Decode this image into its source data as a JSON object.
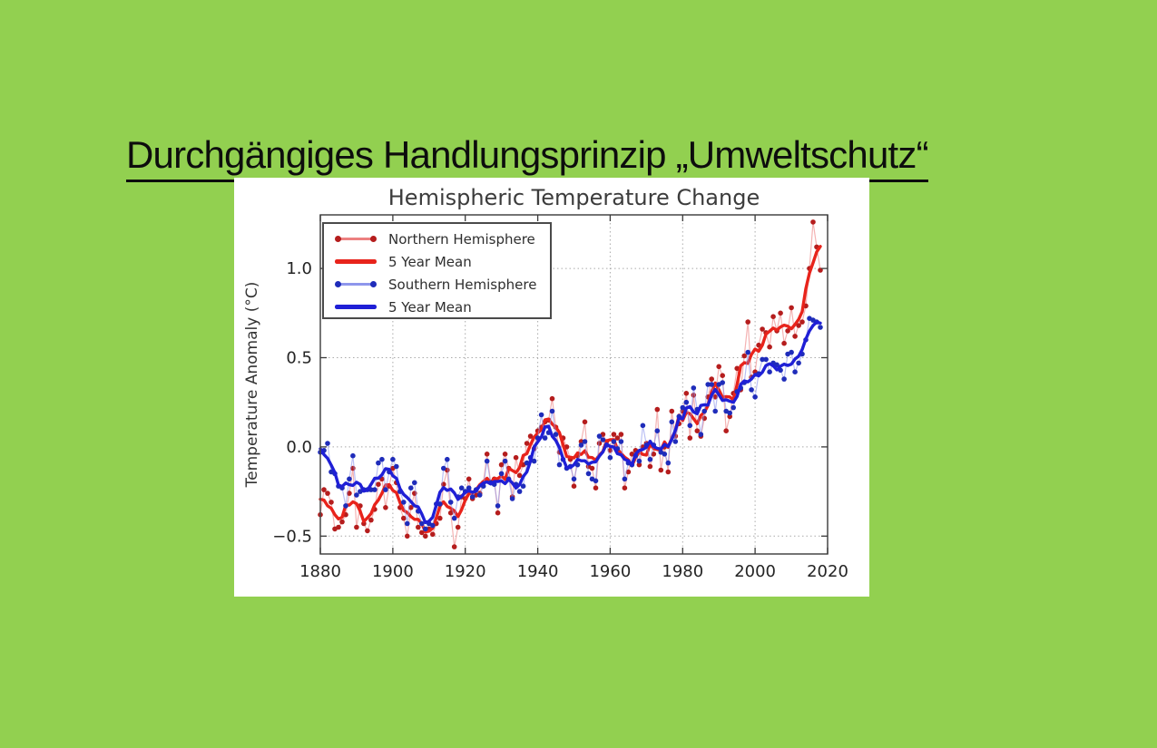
{
  "slide": {
    "background_color": "#92d050",
    "title": "Durchgängiges Handlungsprinzip „Umweltschutz“"
  },
  "chart_data": {
    "type": "line",
    "title": "Hemispheric Temperature Change",
    "xlabel": "",
    "ylabel": "Temperature Anomaly (°C)",
    "figure_background": "#ffffff",
    "grid": "dotted",
    "legend_position": "upper-left",
    "x_start": 1880,
    "x_step": 1,
    "xlim": [
      1880,
      2020
    ],
    "ylim": [
      -0.6,
      1.3
    ],
    "x_ticks": [
      1880,
      1900,
      1920,
      1940,
      1960,
      1980,
      2000,
      2020
    ],
    "x_tick_labels": [
      "1880",
      "1900",
      "1920",
      "1940",
      "1960",
      "1980",
      "2000",
      "2020"
    ],
    "y_ticks": [
      -0.5,
      0.0,
      0.5,
      1.0
    ],
    "y_tick_labels": [
      "−0.5",
      "0.0",
      "0.5",
      "1.0"
    ],
    "series": [
      {
        "name": "Northern Hemisphere",
        "kind": "annual",
        "marker_color": "#b51d1d",
        "line_color": "#ec8080",
        "values": [
          -0.38,
          -0.24,
          -0.26,
          -0.31,
          -0.46,
          -0.45,
          -0.42,
          -0.38,
          -0.26,
          -0.12,
          -0.45,
          -0.33,
          -0.43,
          -0.47,
          -0.41,
          -0.35,
          -0.21,
          -0.18,
          -0.34,
          -0.22,
          -0.12,
          -0.2,
          -0.34,
          -0.4,
          -0.5,
          -0.34,
          -0.26,
          -0.45,
          -0.48,
          -0.5,
          -0.46,
          -0.49,
          -0.43,
          -0.4,
          -0.21,
          -0.13,
          -0.37,
          -0.56,
          -0.45,
          -0.28,
          -0.29,
          -0.18,
          -0.29,
          -0.27,
          -0.26,
          -0.2,
          -0.04,
          -0.2,
          -0.18,
          -0.37,
          -0.1,
          -0.04,
          -0.12,
          -0.28,
          -0.06,
          -0.16,
          -0.1,
          0.02,
          0.06,
          -0.01,
          0.09,
          0.11,
          0.14,
          0.15,
          0.27,
          0.11,
          -0.03,
          0.05,
          0.0,
          -0.07,
          -0.22,
          -0.05,
          0.03,
          0.14,
          -0.11,
          -0.12,
          -0.23,
          0.02,
          0.07,
          0.03,
          -0.02,
          0.07,
          0.05,
          0.07,
          -0.23,
          -0.14,
          -0.04,
          -0.02,
          -0.1,
          0.0,
          0.02,
          -0.11,
          -0.04,
          0.21,
          -0.13,
          0.0,
          -0.14,
          0.2,
          0.06,
          0.13,
          0.2,
          0.3,
          0.05,
          0.29,
          0.09,
          0.06,
          0.16,
          0.28,
          0.38,
          0.28,
          0.45,
          0.4,
          0.09,
          0.17,
          0.3,
          0.44,
          0.32,
          0.51,
          0.7,
          0.39,
          0.42,
          0.57,
          0.66,
          0.64,
          0.56,
          0.73,
          0.65,
          0.75,
          0.58,
          0.65,
          0.78,
          0.62,
          0.68,
          0.7,
          0.79,
          1.0,
          1.26,
          1.12,
          0.99
        ]
      },
      {
        "name": "5 Year Mean",
        "kind": "mean",
        "source": 0,
        "window": 5,
        "color": "#e8231b"
      },
      {
        "name": "Southern Hemisphere",
        "kind": "annual",
        "marker_color": "#1f2cba",
        "line_color": "#8e96ec",
        "values": [
          -0.03,
          -0.02,
          0.02,
          -0.14,
          -0.15,
          -0.22,
          -0.23,
          -0.33,
          -0.18,
          -0.05,
          -0.27,
          -0.25,
          -0.24,
          -0.24,
          -0.24,
          -0.24,
          -0.09,
          -0.07,
          -0.24,
          -0.14,
          -0.07,
          -0.11,
          -0.25,
          -0.31,
          -0.43,
          -0.23,
          -0.2,
          -0.36,
          -0.43,
          -0.46,
          -0.43,
          -0.44,
          -0.32,
          -0.32,
          -0.12,
          -0.07,
          -0.31,
          -0.4,
          -0.28,
          -0.23,
          -0.25,
          -0.23,
          -0.28,
          -0.24,
          -0.27,
          -0.22,
          -0.08,
          -0.2,
          -0.21,
          -0.33,
          -0.15,
          -0.08,
          -0.18,
          -0.29,
          -0.21,
          -0.25,
          -0.22,
          -0.09,
          -0.06,
          -0.08,
          0.05,
          0.18,
          0.05,
          0.08,
          0.2,
          0.07,
          -0.1,
          -0.07,
          -0.12,
          -0.11,
          -0.18,
          -0.1,
          0.01,
          0.03,
          -0.15,
          -0.18,
          -0.19,
          0.06,
          0.04,
          0.01,
          -0.06,
          0.03,
          -0.01,
          0.03,
          -0.18,
          -0.09,
          -0.1,
          -0.05,
          -0.08,
          0.12,
          0.01,
          -0.07,
          0.01,
          0.09,
          -0.03,
          -0.04,
          -0.09,
          0.14,
          0.03,
          0.17,
          0.22,
          0.25,
          0.12,
          0.33,
          0.21,
          0.07,
          0.2,
          0.35,
          0.35,
          0.2,
          0.35,
          0.36,
          0.2,
          0.19,
          0.22,
          0.31,
          0.33,
          0.36,
          0.53,
          0.32,
          0.28,
          0.41,
          0.49,
          0.49,
          0.42,
          0.47,
          0.46,
          0.43,
          0.38,
          0.52,
          0.53,
          0.42,
          0.47,
          0.52,
          0.6,
          0.72,
          0.71,
          0.7,
          0.67
        ]
      },
      {
        "name": "5 Year Mean",
        "kind": "mean",
        "source": 2,
        "window": 5,
        "color": "#1f1fd6"
      }
    ]
  }
}
